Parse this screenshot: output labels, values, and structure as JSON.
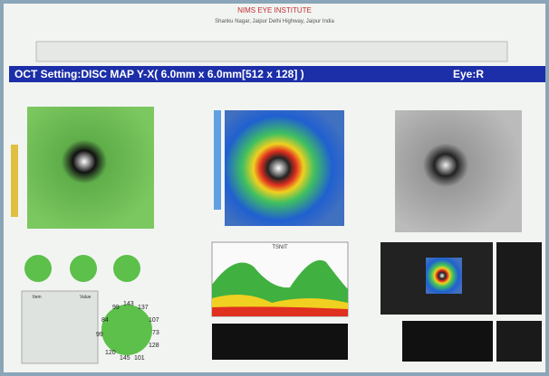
{
  "header": {
    "title": "NIMS EYE INSTITUTE",
    "address": "Shanku Nagar, Jaipur Delhi Highway, Jaipur India"
  },
  "banner": {
    "title": "OCT Setting:DISC MAP Y-X( 6.0mm x 6.0mm[512 x 128] )",
    "eye": "Eye:R"
  },
  "graph": {
    "title": "TSNIT"
  },
  "table": {
    "header": [
      "Item",
      "Value"
    ]
  },
  "clock": {
    "labels": [
      "99",
      "143",
      "137",
      "84",
      "107",
      "99",
      "73",
      "128",
      "120",
      "145",
      "101"
    ]
  }
}
